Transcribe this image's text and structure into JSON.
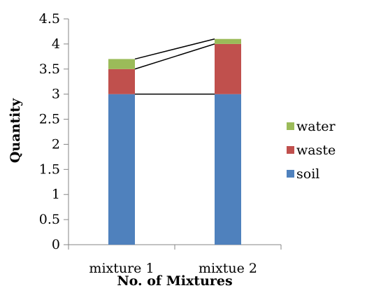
{
  "chart_data": {
    "type": "bar",
    "stacked": true,
    "categories": [
      "mixture 1",
      "mixtue 2"
    ],
    "series": [
      {
        "name": "soil",
        "values": [
          3.0,
          3.0
        ],
        "color": "#4F81BD"
      },
      {
        "name": "waste",
        "values": [
          0.5,
          1.0
        ],
        "color": "#C0504D"
      },
      {
        "name": "water",
        "values": [
          0.2,
          0.1
        ],
        "color": "#9BBB59"
      }
    ],
    "title": "",
    "xlabel": "No. of Mixtures",
    "ylabel": "Quantity",
    "ylim": [
      0,
      4.5
    ],
    "yticks": [
      "0",
      "0.5",
      "1",
      "1.5",
      "2",
      "2.5",
      "3",
      "3.5",
      "4",
      "4.5"
    ],
    "series_lines": true,
    "grid": false,
    "legend_position": "right"
  }
}
